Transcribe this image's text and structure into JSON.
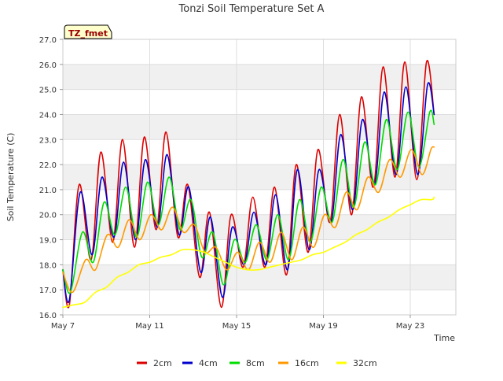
{
  "chart_data": {
    "type": "line",
    "title": "Tonzi Soil Temperature Set A",
    "xlabel": "Time",
    "ylabel": "Soil Temperature (C)",
    "site_label": "TZ_fmet",
    "xlim": [
      7,
      25.1
    ],
    "ylim": [
      16.0,
      27.0
    ],
    "x_ticks": [
      {
        "value": 7,
        "label": "May 7"
      },
      {
        "value": 11,
        "label": "May 11"
      },
      {
        "value": 15,
        "label": "May 15"
      },
      {
        "value": 19,
        "label": "May 19"
      },
      {
        "value": 23,
        "label": "May 23"
      }
    ],
    "y_ticks": [
      16.0,
      17.0,
      18.0,
      19.0,
      20.0,
      21.0,
      22.0,
      23.0,
      24.0,
      25.0,
      26.0,
      27.0
    ],
    "grid": true,
    "legend_position": "bottom",
    "series": [
      {
        "name": "2cm",
        "color": "#dd0000",
        "points": [
          [
            7.0,
            17.8
          ],
          [
            7.3,
            16.4
          ],
          [
            7.75,
            21.2
          ],
          [
            8.3,
            18.2
          ],
          [
            8.75,
            22.5
          ],
          [
            9.3,
            18.9
          ],
          [
            9.75,
            23.0
          ],
          [
            10.3,
            18.7
          ],
          [
            10.75,
            23.1
          ],
          [
            11.3,
            19.4
          ],
          [
            11.75,
            23.3
          ],
          [
            12.3,
            19.1
          ],
          [
            12.75,
            21.2
          ],
          [
            13.3,
            17.5
          ],
          [
            13.75,
            20.1
          ],
          [
            14.3,
            16.3
          ],
          [
            14.75,
            20.0
          ],
          [
            15.3,
            17.9
          ],
          [
            15.75,
            20.7
          ],
          [
            16.3,
            17.9
          ],
          [
            16.75,
            21.1
          ],
          [
            17.3,
            17.6
          ],
          [
            17.75,
            22.0
          ],
          [
            18.3,
            18.5
          ],
          [
            18.75,
            22.6
          ],
          [
            19.3,
            19.7
          ],
          [
            19.75,
            24.0
          ],
          [
            20.3,
            20.0
          ],
          [
            20.75,
            24.7
          ],
          [
            21.3,
            21.1
          ],
          [
            21.75,
            25.9
          ],
          [
            22.3,
            21.5
          ],
          [
            22.75,
            26.1
          ],
          [
            23.3,
            21.4
          ],
          [
            23.75,
            26.1
          ],
          [
            24.1,
            24.0
          ]
        ]
      },
      {
        "name": "4cm",
        "color": "#0000cc",
        "points": [
          [
            7.0,
            17.8
          ],
          [
            7.3,
            16.6
          ],
          [
            7.8,
            20.9
          ],
          [
            8.35,
            18.4
          ],
          [
            8.8,
            21.5
          ],
          [
            9.35,
            19.1
          ],
          [
            9.8,
            22.1
          ],
          [
            10.35,
            19.0
          ],
          [
            10.8,
            22.2
          ],
          [
            11.35,
            19.5
          ],
          [
            11.8,
            22.4
          ],
          [
            12.35,
            19.2
          ],
          [
            12.8,
            21.1
          ],
          [
            13.35,
            17.7
          ],
          [
            13.8,
            19.9
          ],
          [
            14.35,
            16.7
          ],
          [
            14.8,
            19.5
          ],
          [
            15.35,
            18.0
          ],
          [
            15.8,
            20.1
          ],
          [
            16.35,
            18.0
          ],
          [
            16.8,
            20.8
          ],
          [
            17.35,
            17.8
          ],
          [
            17.8,
            21.8
          ],
          [
            18.35,
            18.6
          ],
          [
            18.8,
            21.8
          ],
          [
            19.35,
            19.7
          ],
          [
            19.8,
            23.2
          ],
          [
            20.35,
            20.2
          ],
          [
            20.8,
            23.8
          ],
          [
            21.35,
            21.2
          ],
          [
            21.8,
            24.9
          ],
          [
            22.35,
            21.6
          ],
          [
            22.8,
            25.1
          ],
          [
            23.35,
            21.6
          ],
          [
            23.8,
            25.2
          ],
          [
            24.1,
            24.0
          ]
        ]
      },
      {
        "name": "8cm",
        "color": "#00dd00",
        "points": [
          [
            7.0,
            17.8
          ],
          [
            7.35,
            16.9
          ],
          [
            7.9,
            19.3
          ],
          [
            8.4,
            18.1
          ],
          [
            8.9,
            20.5
          ],
          [
            9.4,
            19.2
          ],
          [
            9.9,
            21.1
          ],
          [
            10.4,
            19.1
          ],
          [
            10.9,
            21.3
          ],
          [
            11.4,
            19.6
          ],
          [
            11.9,
            21.5
          ],
          [
            12.4,
            19.4
          ],
          [
            12.9,
            20.6
          ],
          [
            13.4,
            18.3
          ],
          [
            13.9,
            19.3
          ],
          [
            14.4,
            17.2
          ],
          [
            14.9,
            19.0
          ],
          [
            15.4,
            18.1
          ],
          [
            15.9,
            19.6
          ],
          [
            16.4,
            18.2
          ],
          [
            16.9,
            20.0
          ],
          [
            17.4,
            18.2
          ],
          [
            17.9,
            20.6
          ],
          [
            18.4,
            18.9
          ],
          [
            18.9,
            21.1
          ],
          [
            19.4,
            19.7
          ],
          [
            19.9,
            22.2
          ],
          [
            20.4,
            20.3
          ],
          [
            20.9,
            22.9
          ],
          [
            21.4,
            21.2
          ],
          [
            21.9,
            23.8
          ],
          [
            22.4,
            21.8
          ],
          [
            22.9,
            24.1
          ],
          [
            23.4,
            21.9
          ],
          [
            23.9,
            24.1
          ],
          [
            24.1,
            23.6
          ]
        ]
      },
      {
        "name": "16cm",
        "color": "#ff9900",
        "points": [
          [
            7.0,
            17.7
          ],
          [
            7.45,
            16.9
          ],
          [
            8.05,
            18.2
          ],
          [
            8.5,
            17.8
          ],
          [
            9.05,
            19.2
          ],
          [
            9.55,
            18.7
          ],
          [
            10.05,
            19.8
          ],
          [
            10.55,
            19.0
          ],
          [
            11.05,
            20.0
          ],
          [
            11.55,
            19.4
          ],
          [
            12.05,
            20.3
          ],
          [
            12.55,
            19.3
          ],
          [
            13.05,
            19.6
          ],
          [
            13.55,
            18.5
          ],
          [
            14.05,
            18.7
          ],
          [
            14.55,
            17.8
          ],
          [
            15.05,
            18.5
          ],
          [
            15.55,
            17.8
          ],
          [
            16.05,
            18.9
          ],
          [
            16.55,
            18.1
          ],
          [
            17.05,
            19.3
          ],
          [
            17.55,
            18.2
          ],
          [
            18.05,
            19.5
          ],
          [
            18.55,
            18.7
          ],
          [
            19.05,
            20.0
          ],
          [
            19.55,
            19.5
          ],
          [
            20.05,
            20.9
          ],
          [
            20.55,
            20.2
          ],
          [
            21.05,
            21.5
          ],
          [
            21.55,
            20.9
          ],
          [
            22.05,
            22.2
          ],
          [
            22.55,
            21.5
          ],
          [
            23.05,
            22.6
          ],
          [
            23.55,
            21.6
          ],
          [
            23.95,
            22.6
          ],
          [
            24.1,
            22.7
          ]
        ]
      },
      {
        "name": "32cm",
        "color": "#ffff00",
        "points": [
          [
            7.0,
            16.3
          ],
          [
            7.5,
            16.4
          ],
          [
            8.0,
            16.5
          ],
          [
            8.5,
            16.9
          ],
          [
            9.0,
            17.1
          ],
          [
            9.5,
            17.5
          ],
          [
            10.0,
            17.7
          ],
          [
            10.5,
            18.0
          ],
          [
            11.0,
            18.1
          ],
          [
            11.5,
            18.3
          ],
          [
            12.0,
            18.4
          ],
          [
            12.5,
            18.6
          ],
          [
            13.0,
            18.6
          ],
          [
            13.5,
            18.5
          ],
          [
            14.0,
            18.3
          ],
          [
            14.5,
            18.1
          ],
          [
            15.0,
            17.9
          ],
          [
            15.5,
            17.8
          ],
          [
            16.0,
            17.8
          ],
          [
            16.5,
            17.9
          ],
          [
            17.0,
            18.0
          ],
          [
            17.5,
            18.1
          ],
          [
            18.0,
            18.2
          ],
          [
            18.5,
            18.4
          ],
          [
            19.0,
            18.5
          ],
          [
            19.5,
            18.7
          ],
          [
            20.0,
            18.9
          ],
          [
            20.5,
            19.2
          ],
          [
            21.0,
            19.4
          ],
          [
            21.5,
            19.7
          ],
          [
            22.0,
            19.9
          ],
          [
            22.5,
            20.2
          ],
          [
            23.0,
            20.4
          ],
          [
            23.5,
            20.6
          ],
          [
            24.0,
            20.6
          ],
          [
            24.1,
            20.7
          ]
        ]
      }
    ]
  }
}
